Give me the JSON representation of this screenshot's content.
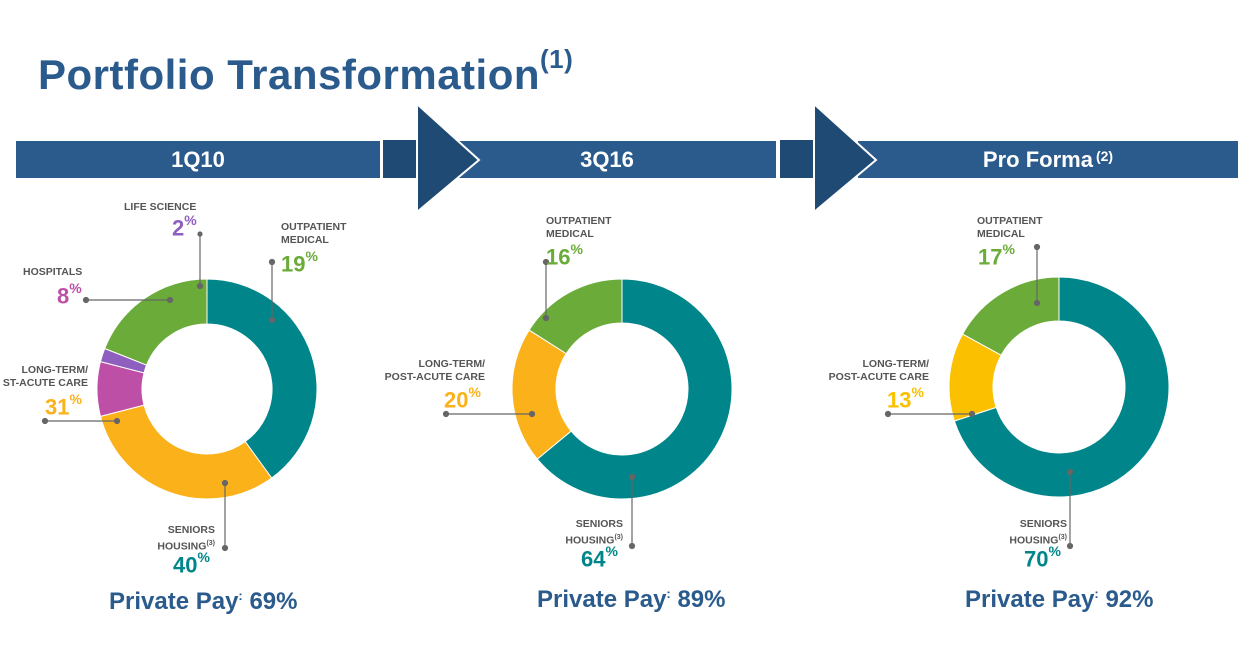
{
  "page": {
    "title": "Portfolio Transformation",
    "title_note": "(1)"
  },
  "colors": {
    "band": "#2a5b8c",
    "arrow": "#1f4a73",
    "seniors_housing": "#00868a",
    "outpatient_medical": "#6aab3a",
    "long_term_care": "#fbb21a",
    "long_term_care_proforma": "#fbc000",
    "hospitals": "#bd4fa6",
    "life_science": "#8f5fbf",
    "label_gray": "#555555"
  },
  "labels": {
    "life_science": "LIFE SCIENCE",
    "outpatient_line1": "OUTPATIENT",
    "outpatient_line2": "MEDICAL",
    "hospitals": "HOSPITALS",
    "ltc_line1": "LONG-TERM/",
    "ltc_line2": "POST-ACUTE CARE",
    "ltc_line2_truncated": "ST-ACUTE CARE",
    "seniors_line1": "SENIORS",
    "seniors_line2": "HOUSING",
    "seniors_note": "(3)",
    "percent_sign": "%",
    "private_pay_label": "Private Pay",
    "private_pay_sep": ":"
  },
  "chart_data": [
    {
      "type": "pie",
      "period": "1Q10",
      "categories": [
        "SENIORS HOUSING",
        "LONG-TERM/POST-ACUTE CARE",
        "HOSPITALS",
        "LIFE SCIENCE",
        "OUTPATIENT MEDICAL"
      ],
      "values": [
        40,
        31,
        8,
        2,
        19
      ],
      "private_pay": "69%"
    },
    {
      "type": "pie",
      "period": "3Q16",
      "categories": [
        "SENIORS HOUSING",
        "LONG-TERM/POST-ACUTE CARE",
        "OUTPATIENT MEDICAL"
      ],
      "values": [
        64,
        20,
        16
      ],
      "private_pay": "89%"
    },
    {
      "type": "pie",
      "period": "Pro Forma",
      "period_note": "(2)",
      "categories": [
        "SENIORS HOUSING",
        "LONG-TERM/POST-ACUTE CARE",
        "OUTPATIENT MEDICAL"
      ],
      "values": [
        70,
        13,
        17
      ],
      "private_pay": "92%"
    }
  ]
}
